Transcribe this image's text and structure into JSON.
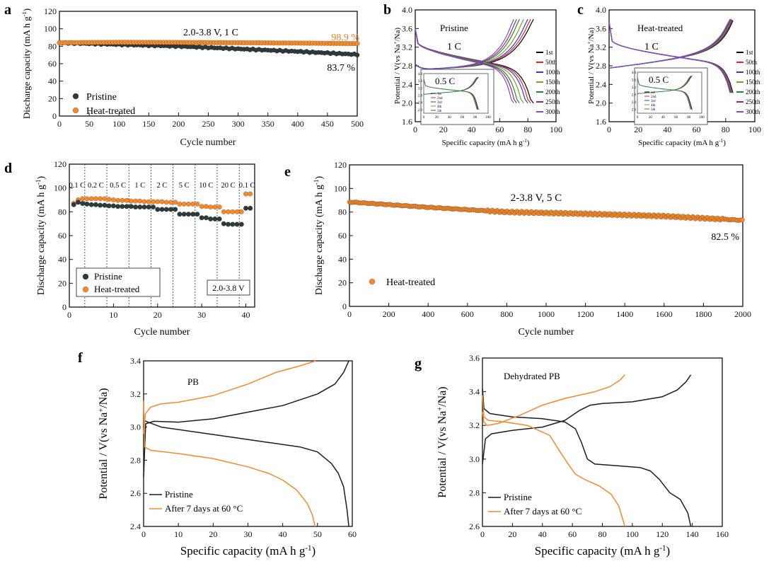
{
  "colors": {
    "pristine": "#2f3a3a",
    "heat": "#f28a2e",
    "orange_text": "#f07d1f",
    "axis": "#111111"
  },
  "chart_data": [
    {
      "id": "a",
      "panel_label": "a",
      "type": "scatter",
      "xlabel": "Cycle number",
      "ylabel": "Discharge capacity (mA h g-1)",
      "xlim": [
        0,
        500
      ],
      "ylim": [
        0,
        120
      ],
      "xticks": [
        0,
        50,
        100,
        150,
        200,
        250,
        300,
        350,
        400,
        450,
        500
      ],
      "yticks": [
        0,
        20,
        40,
        60,
        80,
        100,
        120
      ],
      "annotations": {
        "condition": "2.0-3.8 V, 1 C",
        "retention_heat": "98.9 %",
        "retention_pristine": "83.7 %"
      },
      "legend": [
        "Pristine",
        "Heat-treated"
      ],
      "series": [
        {
          "name": "Pristine",
          "color": "#2f3a3a",
          "x": [
            0,
            100,
            200,
            300,
            400,
            500
          ],
          "y": [
            84,
            82,
            80,
            77,
            74,
            70.5
          ]
        },
        {
          "name": "Heat-treated",
          "color": "#f28a2e",
          "x": [
            0,
            100,
            200,
            300,
            400,
            500
          ],
          "y": [
            84,
            84.5,
            84.3,
            84,
            83.6,
            83
          ]
        }
      ]
    },
    {
      "id": "b",
      "panel_label": "b",
      "type": "line",
      "title": "Pristine",
      "rate_label": "1 C",
      "inset_label": "0.5 C",
      "xlabel": "Specific capacity (mA h g-1)",
      "ylabel": "Potential / V(vs Na+/Na)",
      "xlim": [
        0,
        100
      ],
      "ylim": [
        1.6,
        4.0
      ],
      "xticks": [
        0,
        20,
        40,
        60,
        80,
        100
      ],
      "yticks": [
        1.6,
        2.0,
        2.4,
        2.8,
        3.2,
        3.6,
        4.0
      ],
      "legend": [
        "1st",
        "50th",
        "100th",
        "150th",
        "200th",
        "250th",
        "300th"
      ],
      "legend_colors": [
        "#000000",
        "#e8262a",
        "#2a3fd6",
        "#8c9a1e",
        "#1e8a3a",
        "#a0246e",
        "#7a4fd0"
      ],
      "capacities": [
        84,
        82,
        80,
        77,
        74,
        72,
        70
      ],
      "inset_legend": [
        "1st",
        "2nd",
        "3rd",
        "4th",
        "5th"
      ],
      "inset_ticks_x": [
        0,
        20,
        40,
        60,
        80,
        100
      ],
      "inset_ticks_y": [
        2.0,
        2.4,
        2.8,
        3.2,
        3.6,
        4.0
      ]
    },
    {
      "id": "c",
      "panel_label": "c",
      "type": "line",
      "title": "Heat-treated",
      "rate_label": "1 C",
      "inset_label": "0.5 C",
      "xlabel": "Specific capacity (mA h g-1)",
      "ylabel": "Potential / V(vs Na+/Na)",
      "xlim": [
        0,
        100
      ],
      "ylim": [
        1.6,
        4.0
      ],
      "xticks": [
        0,
        20,
        40,
        60,
        80,
        100
      ],
      "yticks": [
        1.6,
        2.0,
        2.4,
        2.8,
        3.2,
        3.6,
        4.0
      ],
      "legend": [
        "1st",
        "50th",
        "100th",
        "150th",
        "200th",
        "250th",
        "300th"
      ],
      "legend_colors": [
        "#000000",
        "#e8262a",
        "#2a3fd6",
        "#8c9a1e",
        "#1e8a3a",
        "#a0246e",
        "#7a4fd0"
      ],
      "capacities": [
        85,
        84.6,
        84.3,
        84,
        83.7,
        83.4,
        83
      ],
      "inset_legend": [
        "1st",
        "2nd",
        "3rd",
        "4th",
        "5th"
      ],
      "inset_ticks_x": [
        0,
        20,
        40,
        60,
        80,
        100
      ],
      "inset_ticks_y": [
        2.0,
        2.4,
        2.8,
        3.2,
        3.6,
        4.0
      ]
    },
    {
      "id": "d",
      "panel_label": "d",
      "type": "scatter",
      "xlabel": "Cycle number",
      "ylabel": "Discharge capacity (mA h g-1)",
      "xlim": [
        0,
        42
      ],
      "ylim": [
        0,
        120
      ],
      "xticks": [
        0,
        10,
        20,
        30,
        40
      ],
      "yticks": [
        0,
        20,
        40,
        60,
        80,
        100,
        120
      ],
      "rate_labels": [
        "0.1 C",
        "0.2 C",
        "0.5 C",
        "1 C",
        "2 C",
        "5 C",
        "10 C",
        "20 C",
        "0.1 C"
      ],
      "boundaries": [
        3.5,
        8.5,
        13.5,
        18.5,
        23.5,
        28.5,
        33.5,
        38.5
      ],
      "voltage_window": "2.0-3.8 V",
      "legend": [
        "Pristine",
        "Heat-treated"
      ],
      "series": [
        {
          "name": "Pristine",
          "color": "#2f3a3a",
          "values": [
            86,
            88,
            87,
            86.5,
            86,
            86,
            85.5,
            85.5,
            85,
            85,
            84.5,
            84.5,
            84.5,
            84.5,
            84,
            84,
            84,
            84,
            84,
            82,
            82,
            82,
            82,
            82,
            78,
            78,
            78,
            78,
            78,
            75,
            75,
            74,
            74,
            74,
            70,
            69.5,
            69.5,
            69.5,
            69.5,
            83,
            83
          ]
        },
        {
          "name": "Heat-treated",
          "color": "#f28a2e",
          "values": [
            87,
            90,
            91,
            91,
            91,
            91,
            91,
            91,
            90.5,
            90,
            89.5,
            89.5,
            89.5,
            89,
            89,
            89,
            88.5,
            88.5,
            88.5,
            88.5,
            88.5,
            88,
            88,
            88,
            86.5,
            86.5,
            86.5,
            86.5,
            86.5,
            84.5,
            84.5,
            84,
            84,
            84,
            80,
            80,
            80,
            80,
            80,
            95,
            95
          ]
        }
      ]
    },
    {
      "id": "e",
      "panel_label": "e",
      "type": "scatter",
      "xlabel": "Cycle number",
      "ylabel": "Discharge capacity (mA h g-1)",
      "xlim": [
        0,
        2000
      ],
      "ylim": [
        0,
        120
      ],
      "xticks": [
        0,
        200,
        400,
        600,
        800,
        1000,
        1200,
        1400,
        1600,
        1800,
        2000
      ],
      "yticks": [
        0,
        20,
        40,
        60,
        80,
        100,
        120
      ],
      "annotations": {
        "condition": "2-3.8 V, 5 C",
        "retention": "82.5 %"
      },
      "legend": [
        "Heat-treated"
      ],
      "series": [
        {
          "name": "Heat-treated",
          "color": "#f28a2e",
          "x": [
            0,
            400,
            800,
            1200,
            1600,
            2000
          ],
          "y": [
            88.5,
            84,
            80,
            78.5,
            76.5,
            73
          ]
        }
      ]
    },
    {
      "id": "f",
      "panel_label": "f",
      "type": "line",
      "title": "PB",
      "xlabel": "Specific capacity (mA h g-1)",
      "ylabel": "Potential / V(vs Na+/Na)",
      "xlim": [
        0,
        60
      ],
      "ylim": [
        2.4,
        3.4
      ],
      "xticks": [
        0,
        10,
        20,
        30,
        40,
        50,
        60
      ],
      "yticks": [
        2.4,
        2.6,
        2.8,
        3.0,
        3.2,
        3.4
      ],
      "legend": [
        "Pristine",
        "After 7 days at 60 °C"
      ],
      "series": [
        {
          "name": "Pristine charge",
          "color": "#1c1c1c",
          "x": [
            0,
            0.6,
            3,
            10,
            20,
            30,
            40,
            50,
            55,
            57.5,
            59
          ],
          "y": [
            2.7,
            3.02,
            3.035,
            3.03,
            3.05,
            3.09,
            3.13,
            3.2,
            3.26,
            3.33,
            3.4
          ]
        },
        {
          "name": "Pristine discharge",
          "color": "#1c1c1c",
          "x": [
            0,
            5,
            15,
            25,
            35,
            45,
            50,
            54,
            56,
            57.5,
            58.5,
            59
          ],
          "y": [
            3.04,
            3.0,
            2.97,
            2.94,
            2.91,
            2.88,
            2.85,
            2.78,
            2.72,
            2.64,
            2.5,
            2.4
          ]
        },
        {
          "name": "After 7 days charge",
          "color": "#f28a2e",
          "x": [
            0,
            0.5,
            2,
            5,
            10,
            20,
            30,
            38,
            45,
            49.5
          ],
          "y": [
            2.96,
            3.08,
            3.12,
            3.14,
            3.15,
            3.19,
            3.26,
            3.33,
            3.37,
            3.4
          ]
        },
        {
          "name": "After 7 days discharge",
          "color": "#f28a2e",
          "x": [
            0,
            0.3,
            2,
            10,
            20,
            30,
            36,
            40,
            44,
            47,
            48.5,
            49.3
          ],
          "y": [
            3.16,
            2.88,
            2.86,
            2.84,
            2.81,
            2.76,
            2.72,
            2.68,
            2.62,
            2.54,
            2.47,
            2.4
          ]
        }
      ]
    },
    {
      "id": "g",
      "panel_label": "g",
      "type": "line",
      "title": "Dehydrated PB",
      "xlabel": "Specific capacity (mA h g-1)",
      "ylabel": "Potential / V(vs Na+/Na)",
      "xlim": [
        0,
        160
      ],
      "ylim": [
        2.6,
        3.6
      ],
      "xticks": [
        0,
        20,
        40,
        60,
        80,
        100,
        120,
        140,
        160
      ],
      "yticks": [
        2.6,
        2.8,
        3.0,
        3.2,
        3.4,
        3.6
      ],
      "legend": [
        "Pristine",
        "After 7 days at 60 °C"
      ],
      "series": [
        {
          "name": "Pristine charge",
          "color": "#1c1c1c",
          "x": [
            0,
            2,
            6,
            20,
            40,
            55,
            65,
            72,
            80,
            100,
            120,
            130,
            136,
            139
          ],
          "y": [
            2.97,
            3.12,
            3.15,
            3.17,
            3.19,
            3.23,
            3.29,
            3.32,
            3.33,
            3.34,
            3.37,
            3.41,
            3.46,
            3.5
          ]
        },
        {
          "name": "Pristine discharge",
          "color": "#1c1c1c",
          "x": [
            0,
            1,
            5,
            20,
            40,
            55,
            62,
            66,
            70,
            75,
            90,
            105,
            112,
            118,
            125,
            132,
            137,
            139
          ],
          "y": [
            3.42,
            3.3,
            3.27,
            3.25,
            3.24,
            3.22,
            3.18,
            3.1,
            3.0,
            2.97,
            2.96,
            2.95,
            2.93,
            2.88,
            2.8,
            2.76,
            2.68,
            2.6
          ]
        },
        {
          "name": "After 7 days charge",
          "color": "#f28a2e",
          "x": [
            0,
            1,
            3,
            10,
            25,
            40,
            55,
            65,
            75,
            85,
            92,
            95
          ],
          "y": [
            3.28,
            3.22,
            3.2,
            3.21,
            3.26,
            3.32,
            3.36,
            3.38,
            3.4,
            3.43,
            3.47,
            3.5
          ]
        },
        {
          "name": "After 7 days discharge",
          "color": "#f28a2e",
          "x": [
            0,
            1,
            4,
            15,
            30,
            45,
            52,
            58,
            62,
            68,
            78,
            86,
            91,
            95
          ],
          "y": [
            3.38,
            3.25,
            3.23,
            3.22,
            3.2,
            3.14,
            3.04,
            2.96,
            2.91,
            2.88,
            2.84,
            2.79,
            2.72,
            2.6
          ]
        }
      ]
    }
  ]
}
